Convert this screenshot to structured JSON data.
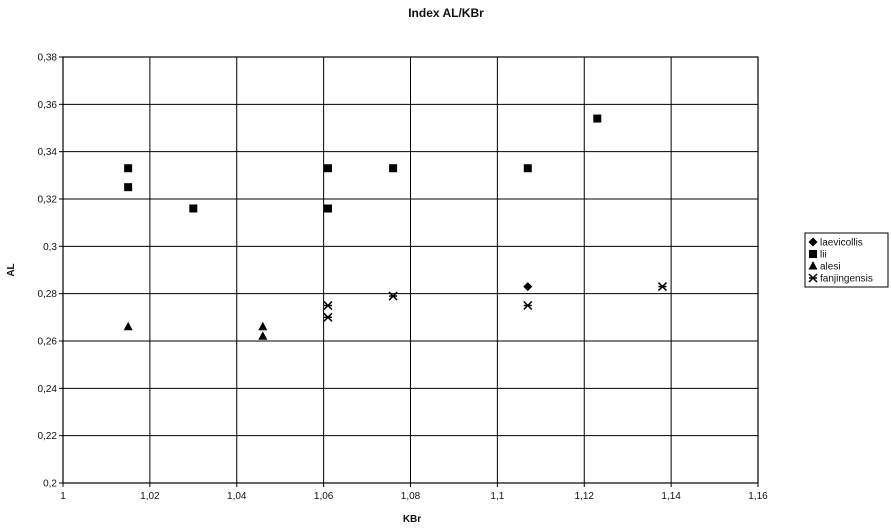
{
  "chart_data": {
    "type": "scatter",
    "title": "Index AL/KBr",
    "xlabel": "KBr",
    "ylabel": "AL",
    "xlim": [
      1,
      1.16
    ],
    "ylim": [
      0.2,
      0.38
    ],
    "x_ticks": [
      1,
      1.02,
      1.04,
      1.06,
      1.08,
      1.1,
      1.12,
      1.14,
      1.16
    ],
    "x_tick_labels": [
      "1",
      "1,02",
      "1,04",
      "1,06",
      "1,08",
      "1,1",
      "1,12",
      "1,14",
      "1,16"
    ],
    "y_ticks": [
      0.2,
      0.22,
      0.24,
      0.26,
      0.28,
      0.3,
      0.32,
      0.34,
      0.36,
      0.38
    ],
    "y_tick_labels": [
      "0,2",
      "0,22",
      "0,24",
      "0,26",
      "0,28",
      "0,3",
      "0,32",
      "0,34",
      "0,36",
      "0,38"
    ],
    "grid": true,
    "legend_position": "right",
    "series": [
      {
        "name": "laevicollis",
        "marker": "diamond",
        "color": "#000000",
        "points": [
          [
            1.107,
            0.283
          ]
        ]
      },
      {
        "name": "lii",
        "marker": "square",
        "color": "#000000",
        "points": [
          [
            1.015,
            0.333
          ],
          [
            1.015,
            0.325
          ],
          [
            1.03,
            0.316
          ],
          [
            1.061,
            0.333
          ],
          [
            1.061,
            0.316
          ],
          [
            1.076,
            0.333
          ],
          [
            1.107,
            0.333
          ],
          [
            1.123,
            0.354
          ]
        ]
      },
      {
        "name": "alesi",
        "marker": "triangle",
        "color": "#000000",
        "points": [
          [
            1.015,
            0.266
          ],
          [
            1.046,
            0.266
          ],
          [
            1.046,
            0.262
          ]
        ]
      },
      {
        "name": "fanjingensis",
        "marker": "asterisk",
        "color": "#000000",
        "points": [
          [
            1.061,
            0.275
          ],
          [
            1.061,
            0.27
          ],
          [
            1.076,
            0.279
          ],
          [
            1.107,
            0.275
          ],
          [
            1.138,
            0.283
          ]
        ]
      }
    ]
  }
}
